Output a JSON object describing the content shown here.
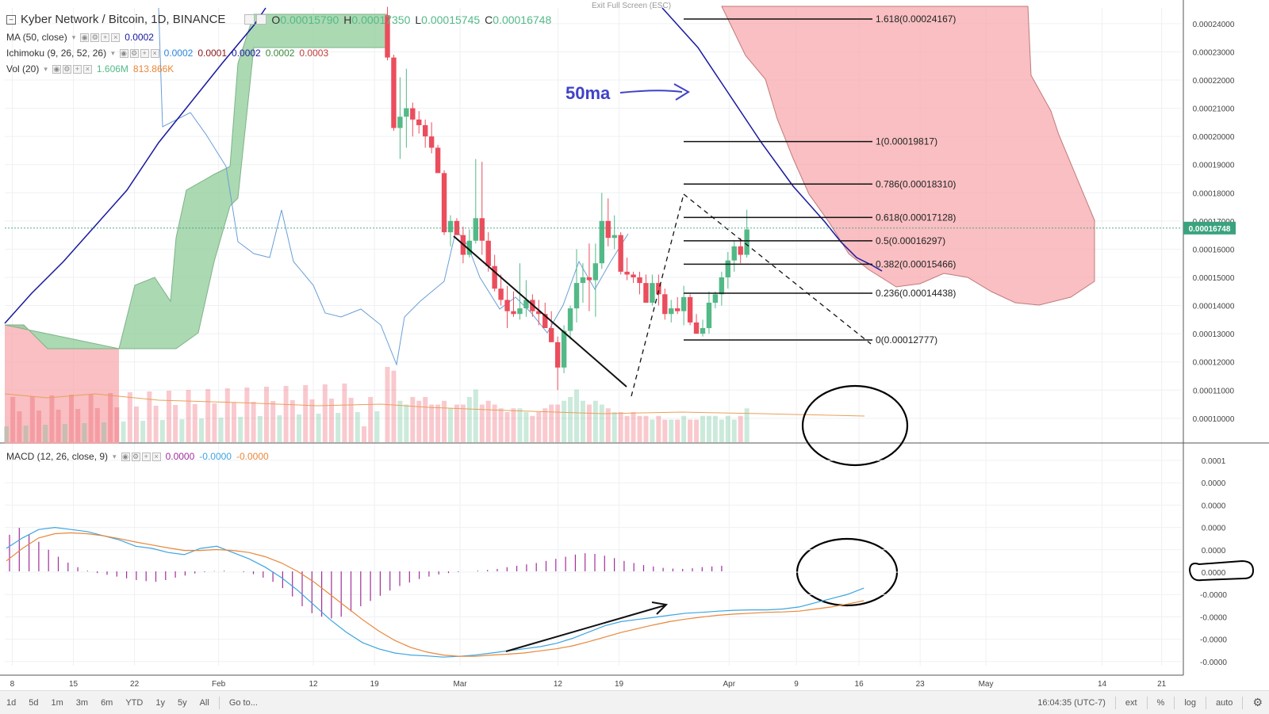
{
  "header": {
    "collapse_icon": "minus-square-icon",
    "title": "Kyber Network / Bitcoin, 1D, BINANCE",
    "o_label": "O",
    "o_val": "0.00015790",
    "h_label": "H",
    "h_val": "0.00017350",
    "l_label": "L",
    "l_val": "0.00015745",
    "c_label": "C",
    "c_val": "0.00016748",
    "exit_fullscreen": "Exit Full Screen (ESC)"
  },
  "indicators": {
    "ma": {
      "label": "MA (50, close)",
      "v1": "0.0002"
    },
    "ichimoku": {
      "label": "Ichimoku (9, 26, 52, 26)",
      "v1": "0.0002",
      "v2": "0.0001",
      "v3": "0.0002",
      "v4": "0.0002",
      "v5": "0.0003"
    },
    "vol": {
      "label": "Vol (20)",
      "v1": "1.606M",
      "v2": "813.866K"
    },
    "macd": {
      "label": "MACD (12, 26, close, 9)",
      "v1": "0.0000",
      "v2": "-0.0000",
      "v3": "-0.0000"
    }
  },
  "bottom_bar": {
    "ranges": [
      "1d",
      "5d",
      "1m",
      "3m",
      "6m",
      "YTD",
      "1y",
      "5y",
      "All"
    ],
    "goto": "Go to...",
    "time": "16:04:35 (UTC-7)",
    "ext": "ext",
    "pct": "%",
    "log": "log",
    "auto": "auto",
    "settings_icon": "gear-icon"
  },
  "colors": {
    "up": "#53b987",
    "down": "#eb4d5c",
    "ma": "#1919a0",
    "macd": "#3da5e0",
    "signal": "#e8873a",
    "hist": "#a22e9b",
    "cloud_bear": "#f7a9ad",
    "cloud_bull": "#8fcc98",
    "annotation": "#3f42c8"
  },
  "chart_data": [
    {
      "type": "candlestick",
      "title": "Kyber Network / Bitcoin, 1D, BINANCE",
      "x_ticks": [
        "8",
        "15",
        "22",
        "Feb",
        "12",
        "19",
        "Mar",
        "12",
        "19",
        "Apr",
        "9",
        "16",
        "23",
        "May",
        "14",
        "21"
      ],
      "y_ticks": [
        "0.00010000",
        "0.00011000",
        "0.00012000",
        "0.00013000",
        "0.00014000",
        "0.00015000",
        "0.00016000",
        "0.00017000",
        "0.00018000",
        "0.00019000",
        "0.00020000",
        "0.00021000",
        "0.00022000",
        "0.00023000",
        "0.00024000"
      ],
      "ylim": [
        9.32e-05,
        0.0002456
      ],
      "last_price": "0.00016748",
      "candles": [
        [
          0.000243,
          0.000246,
          0.000227,
          0.000228
        ],
        [
          0.000228,
          0.000229,
          0.000202,
          0.000203
        ],
        [
          0.000203,
          0.000221,
          0.000192,
          0.000207
        ],
        [
          0.000207,
          0.000224,
          0.000196,
          0.00021
        ],
        [
          0.00021,
          0.000212,
          0.0002,
          0.000206
        ],
        [
          0.000206,
          0.000209,
          0.000201,
          0.000204
        ],
        [
          0.000204,
          0.000206,
          0.000196,
          0.0002
        ],
        [
          0.0002,
          0.000205,
          0.000194,
          0.000196
        ],
        [
          0.000196,
          0.000197,
          0.000187,
          0.000187
        ],
        [
          0.000187,
          0.000188,
          0.000165,
          0.000166
        ],
        [
          0.000166,
          0.000172,
          0.000161,
          0.00017
        ],
        [
          0.00017,
          0.000171,
          0.000165,
          0.000165
        ],
        [
          0.000165,
          0.000168,
          0.000155,
          0.000158
        ],
        [
          0.000158,
          0.000167,
          0.000157,
          0.000163
        ],
        [
          0.000163,
          0.000192,
          0.000162,
          0.000171
        ],
        [
          0.000171,
          0.000191,
          0.000158,
          0.000163
        ],
        [
          0.000163,
          0.000166,
          0.000152,
          0.000154
        ],
        [
          0.000154,
          0.000158,
          0.000145,
          0.000146
        ],
        [
          0.000146,
          0.000151,
          0.00014,
          0.000142
        ],
        [
          0.000142,
          0.000147,
          0.000132,
          0.000138
        ],
        [
          0.000138,
          0.000145,
          0.000136,
          0.000137
        ],
        [
          0.000137,
          0.000155,
          0.000135,
          0.000139
        ],
        [
          0.000139,
          0.000149,
          0.000136,
          0.000142
        ],
        [
          0.000142,
          0.000144,
          0.000136,
          0.000138
        ],
        [
          0.000138,
          0.000142,
          0.000133,
          0.000137
        ],
        [
          0.000137,
          0.000141,
          0.000132,
          0.000132
        ],
        [
          0.000132,
          0.000138,
          0.000127,
          0.000127
        ],
        [
          0.000127,
          0.000129,
          0.00011,
          0.000118
        ],
        [
          0.000118,
          0.000133,
          0.000116,
          0.000131
        ],
        [
          0.000131,
          0.00014,
          0.000128,
          0.000139
        ],
        [
          0.000139,
          0.00016,
          0.000134,
          0.000148
        ],
        [
          0.000148,
          0.000155,
          0.000141,
          0.00015
        ],
        [
          0.00015,
          0.000162,
          0.000138,
          0.000149
        ],
        [
          0.000149,
          0.000162,
          0.000136,
          0.000155
        ],
        [
          0.000155,
          0.00018,
          0.000153,
          0.00017
        ],
        [
          0.00017,
          0.000178,
          0.000161,
          0.000164
        ],
        [
          0.000164,
          0.000172,
          0.00016,
          0.000165
        ],
        [
          0.000165,
          0.000166,
          0.000151,
          0.000152
        ],
        [
          0.000152,
          0.000157,
          0.000149,
          0.000151
        ],
        [
          0.000151,
          0.000152,
          0.000148,
          0.00015
        ],
        [
          0.00015,
          0.000152,
          0.000144,
          0.000148
        ],
        [
          0.000148,
          0.000151,
          0.000141,
          0.000141
        ],
        [
          0.000141,
          0.000151,
          0.00014,
          0.000148
        ],
        [
          0.000148,
          0.000151,
          0.00014,
          0.000144
        ],
        [
          0.000144,
          0.000146,
          0.000135,
          0.000137
        ],
        [
          0.000137,
          0.000142,
          0.000134,
          0.000139
        ],
        [
          0.000139,
          0.000143,
          0.000137,
          0.000138
        ],
        [
          0.000138,
          0.000147,
          0.000133,
          0.000143
        ],
        [
          0.000143,
          0.000144,
          0.000133,
          0.000134
        ],
        [
          0.000134,
          0.000137,
          0.00013,
          0.00013
        ],
        [
          0.00013,
          0.000135,
          0.000129,
          0.000132
        ],
        [
          0.000132,
          0.000145,
          0.00013,
          0.000141
        ],
        [
          0.000141,
          0.000145,
          0.000139,
          0.000144
        ],
        [
          0.000144,
          0.000152,
          0.00014,
          0.00015
        ],
        [
          0.00015,
          0.000159,
          0.000146,
          0.000156
        ],
        [
          0.000156,
          0.000163,
          0.000152,
          0.000161
        ],
        [
          0.000161,
          0.000164,
          0.000155,
          0.000158
        ],
        [
          0.000158,
          0.000174,
          0.000157,
          0.000167
        ]
      ],
      "volume_relative": [
        1.0,
        0.95,
        0.55,
        0.5,
        0.6,
        0.55,
        0.6,
        0.5,
        0.5,
        0.55,
        0.45,
        0.5,
        0.5,
        0.6,
        0.7,
        0.5,
        0.55,
        0.5,
        0.45,
        0.4,
        0.45,
        0.45,
        0.4,
        0.35,
        0.4,
        0.45,
        0.5,
        0.5,
        0.55,
        0.6,
        0.7,
        0.55,
        0.5,
        0.55,
        0.5,
        0.45,
        0.4,
        0.4,
        0.35,
        0.4,
        0.35,
        0.35,
        0.3,
        0.35,
        0.3,
        0.3,
        0.3,
        0.35,
        0.3,
        0.3,
        0.35,
        0.35,
        0.35,
        0.3,
        0.35,
        0.3,
        0.35,
        0.45
      ],
      "fib_levels": [
        {
          "ratio": "1.618",
          "price": 0.00024167,
          "label": "1.618(0.00024167)"
        },
        {
          "ratio": "1",
          "price": 0.00019817,
          "label": "1(0.00019817)"
        },
        {
          "ratio": "0.786",
          "price": 0.0001831,
          "label": "0.786(0.00018310)"
        },
        {
          "ratio": "0.618",
          "price": 0.00017128,
          "label": "0.618(0.00017128)"
        },
        {
          "ratio": "0.5",
          "price": 0.00016297,
          "label": "0.5(0.00016297)"
        },
        {
          "ratio": "0.382",
          "price": 0.00015466,
          "label": "0.382(0.00015466)"
        },
        {
          "ratio": "0.236",
          "price": 0.00014438,
          "label": "0.236(0.00014438)"
        },
        {
          "ratio": "0",
          "price": 0.00012777,
          "label": "0(0.00012777)"
        }
      ],
      "ma50": [
        [
          -66,
          0.000134
        ],
        [
          -50,
          0.000158
        ],
        [
          -40,
          0.000175
        ],
        [
          -30,
          0.000192
        ],
        [
          -20,
          0.000208
        ],
        [
          -10,
          0.000228
        ],
        [
          0,
          0.000244
        ],
        [
          5,
          0.000249
        ]
      ],
      "ma50_right": [
        [
          5,
          0.000249
        ],
        [
          10,
          0.000243
        ],
        [
          20,
          0.000232
        ],
        [
          30,
          0.00021
        ],
        [
          38,
          0.000192
        ],
        [
          45,
          0.000178
        ],
        [
          50,
          0.000167
        ],
        [
          54,
          0.00016
        ],
        [
          58,
          0.000156
        ],
        [
          61,
          0.000153
        ]
      ],
      "annotations": {
        "ma_label": "50ma"
      }
    },
    {
      "type": "macd",
      "title": "MACD (12, 26, close, 9)",
      "y_ticks": [
        "0.0001",
        "0.0000",
        "0.0000",
        "0.0000",
        "0.0000",
        "0.0000",
        "-0.0000",
        "-0.0000",
        "-0.0000",
        "-0.0000"
      ],
      "macd": [
        0.55,
        0.8,
        1.0,
        1.05,
        1.0,
        0.95,
        0.85,
        0.75,
        0.6,
        0.55,
        0.45,
        0.4,
        0.55,
        0.6,
        0.45,
        0.3,
        0.1,
        -0.15,
        -0.45,
        -0.8,
        -1.15,
        -1.45,
        -1.7,
        -1.85,
        -1.95,
        -2.0,
        -2.02,
        -2.05,
        -2.03,
        -2.0,
        -1.95,
        -1.9,
        -1.85,
        -1.8,
        -1.72,
        -1.6,
        -1.45,
        -1.3,
        -1.2,
        -1.15,
        -1.1,
        -1.05,
        -1.0,
        -0.98,
        -0.95,
        -0.93,
        -0.92,
        -0.92,
        -0.9,
        -0.85,
        -0.75,
        -0.65,
        -0.55,
        -0.4
      ],
      "signal": [
        0.25,
        0.55,
        0.8,
        0.9,
        0.92,
        0.9,
        0.85,
        0.78,
        0.7,
        0.63,
        0.56,
        0.5,
        0.5,
        0.52,
        0.5,
        0.45,
        0.35,
        0.2,
        0.0,
        -0.25,
        -0.55,
        -0.85,
        -1.15,
        -1.42,
        -1.65,
        -1.82,
        -1.93,
        -2.0,
        -2.03,
        -2.03,
        -2.0,
        -1.98,
        -1.95,
        -1.9,
        -1.85,
        -1.78,
        -1.68,
        -1.57,
        -1.46,
        -1.37,
        -1.28,
        -1.2,
        -1.14,
        -1.09,
        -1.05,
        -1.02,
        -1.0,
        -0.98,
        -0.97,
        -0.95,
        -0.9,
        -0.85,
        -0.78,
        -0.7
      ],
      "histogram_note": "difference of macd and signal"
    }
  ]
}
